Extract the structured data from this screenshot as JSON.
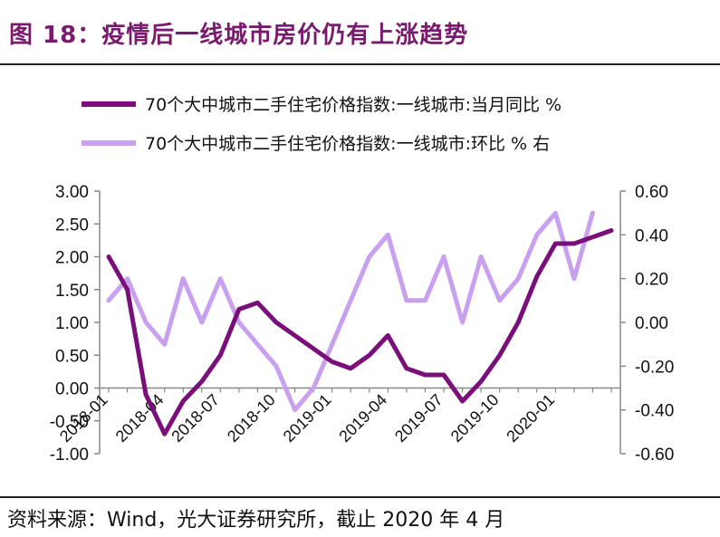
{
  "title": "图 18：疫情后一线城市房价仍有上涨趋势",
  "source": "资料来源：Wind，光大证券研究所，截止 2020 年 4 月",
  "chart_data": {
    "type": "line",
    "x": [
      "2018-01",
      "2018-02",
      "2018-03",
      "2018-04",
      "2018-05",
      "2018-06",
      "2018-07",
      "2018-08",
      "2018-09",
      "2018-10",
      "2018-11",
      "2018-12",
      "2019-01",
      "2019-02",
      "2019-03",
      "2019-04",
      "2019-05",
      "2019-06",
      "2019-07",
      "2019-08",
      "2019-09",
      "2019-10",
      "2019-11",
      "2019-12",
      "2020-01",
      "2020-02",
      "2020-03",
      "2020-04"
    ],
    "x_tick_labels": [
      "2018-01",
      "2018-04",
      "2018-07",
      "2018-10",
      "2019-01",
      "2019-04",
      "2019-07",
      "2019-10",
      "2020-01"
    ],
    "left_axis": {
      "ylim": [
        -1.0,
        3.0
      ],
      "ticks": [
        "3.00",
        "2.50",
        "2.00",
        "1.50",
        "1.00",
        "0.50",
        "0.00",
        "-0.50",
        "-1.00"
      ]
    },
    "right_axis": {
      "ylim": [
        -0.6,
        0.6
      ],
      "ticks": [
        "0.60",
        "0.40",
        "0.20",
        "0.00",
        "-0.20",
        "-0.40",
        "-0.60"
      ]
    },
    "series": [
      {
        "name": "70个大中城市二手住宅价格指数:一线城市:当月同比 %",
        "axis": "left",
        "color": "#7a0f7a",
        "values": [
          2.0,
          1.5,
          -0.1,
          -0.7,
          -0.2,
          0.1,
          0.5,
          1.2,
          1.3,
          1.0,
          0.8,
          0.6,
          0.4,
          0.3,
          0.5,
          0.8,
          0.3,
          0.2,
          0.2,
          -0.2,
          0.1,
          0.5,
          1.0,
          1.7,
          2.2,
          2.2,
          2.3,
          2.4
        ]
      },
      {
        "name": "70个大中城市二手住宅价格指数:一线城市:环比 % 右",
        "axis": "right",
        "color": "#c9a0f0",
        "values": [
          0.1,
          0.2,
          0.0,
          -0.1,
          0.2,
          0.0,
          0.2,
          0.0,
          -0.1,
          -0.2,
          -0.4,
          -0.3,
          -0.1,
          0.1,
          0.3,
          0.4,
          0.1,
          0.1,
          0.3,
          0.0,
          0.3,
          0.1,
          0.2,
          0.4,
          0.5,
          0.2,
          0.5,
          null
        ]
      }
    ],
    "grid": false,
    "legend_placement": "top"
  }
}
